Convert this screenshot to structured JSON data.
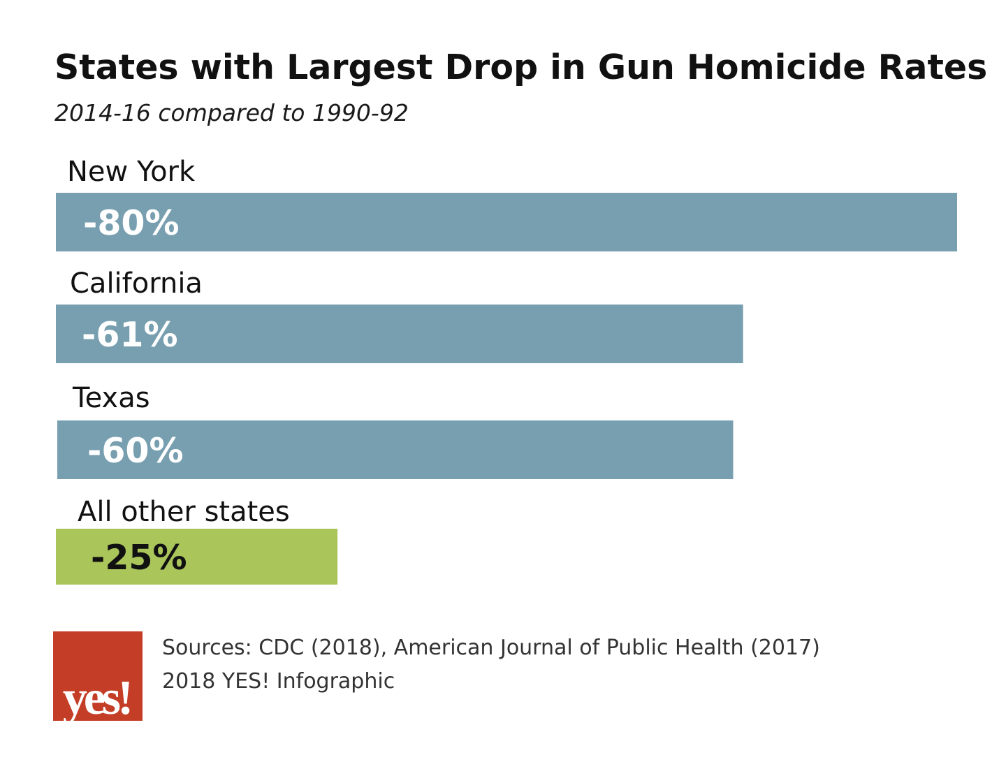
{
  "title": "States with Largest Drop in Gun Homicide Rates",
  "subtitle": "2014-16 compared to 1990-92",
  "colors": {
    "state_bar": "#789fb0",
    "other_bar": "#aac55a",
    "state_value_text": "#ffffff",
    "other_value_text": "#111111",
    "logo_background": "#c43d27",
    "logo_text": "#ffffff"
  },
  "chart_data": {
    "type": "bar",
    "orientation": "horizontal",
    "title": "States with Largest Drop in Gun Homicide Rates",
    "subtitle": "2014-16 compared to 1990-92",
    "categories": [
      "New York",
      "California",
      "Texas",
      "All other states"
    ],
    "values": [
      -80,
      -61,
      -60,
      -25
    ],
    "value_labels": [
      "-80%",
      "-61%",
      "-60%",
      "-25%"
    ],
    "unit": "%",
    "xlim": [
      0,
      -80
    ],
    "grid": false,
    "legend": "none"
  },
  "footer": {
    "sources": "Sources: CDC (2018), American Journal of Public Health (2017)",
    "credit": "2018 YES! Infographic",
    "logo_text": "yes!"
  }
}
